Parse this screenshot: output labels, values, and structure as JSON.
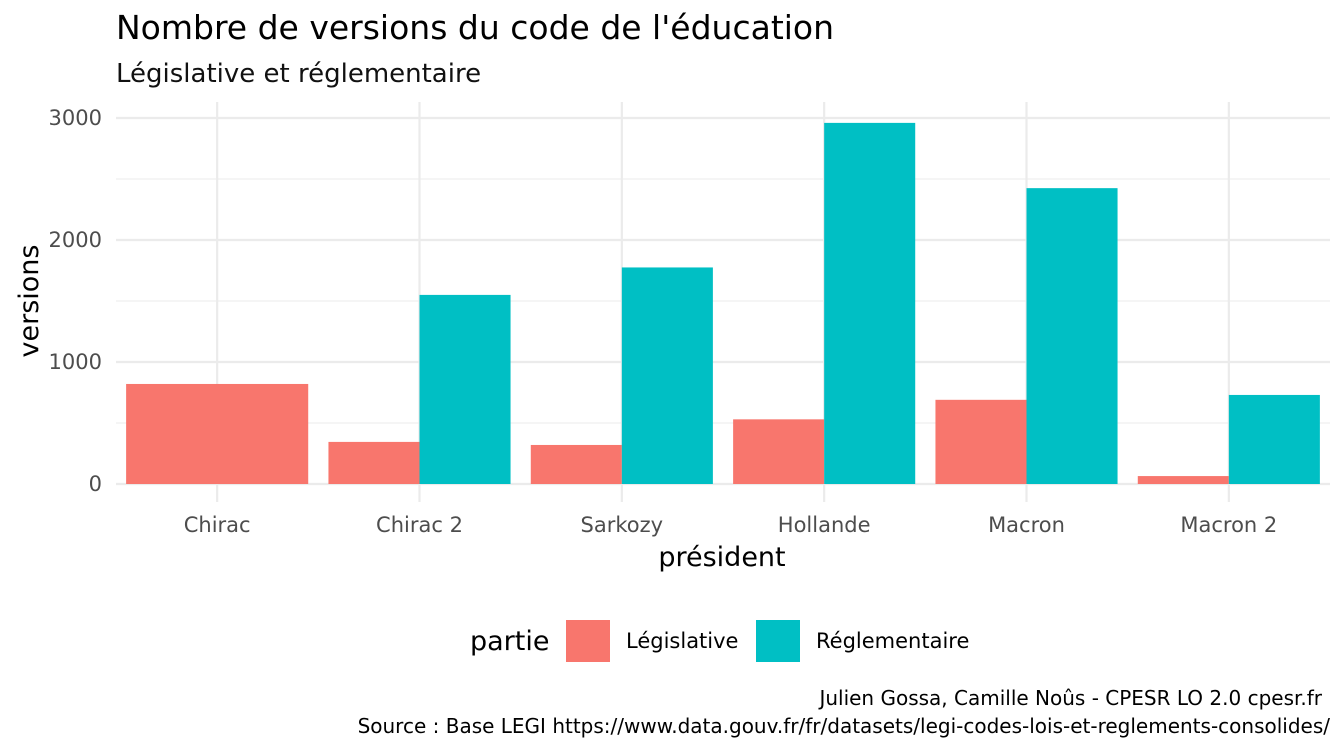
{
  "chart_data": {
    "type": "bar",
    "title": "Nombre de versions du code de l'éducation",
    "subtitle": "Législative et réglementaire",
    "xlabel": "président",
    "ylabel": "versions",
    "categories": [
      "Chirac",
      "Chirac 2",
      "Sarkozy",
      "Hollande",
      "Macron",
      "Macron 2"
    ],
    "series": [
      {
        "name": "Législative",
        "color": "#F8766D",
        "values": [
          820,
          345,
          320,
          530,
          690,
          65
        ]
      },
      {
        "name": "Réglementaire",
        "color": "#00BFC4",
        "values": [
          null,
          1550,
          1775,
          2960,
          2425,
          730
        ]
      }
    ],
    "ylim": [
      0,
      3000
    ],
    "yticks": [
      0,
      1000,
      2000,
      3000
    ],
    "ytick_labels": [
      "0",
      "1000",
      "2000",
      "3000"
    ],
    "grid": true,
    "legend": {
      "title": "partie",
      "position": "bottom"
    },
    "caption_lines": [
      "Julien Gossa, Camille Noûs - CPESR LO 2.0 cpesr.fr ",
      "Source : Base LEGI https://www.data.gouv.fr/fr/datasets/legi-codes-lois-et-reglements-consolides/"
    ]
  }
}
